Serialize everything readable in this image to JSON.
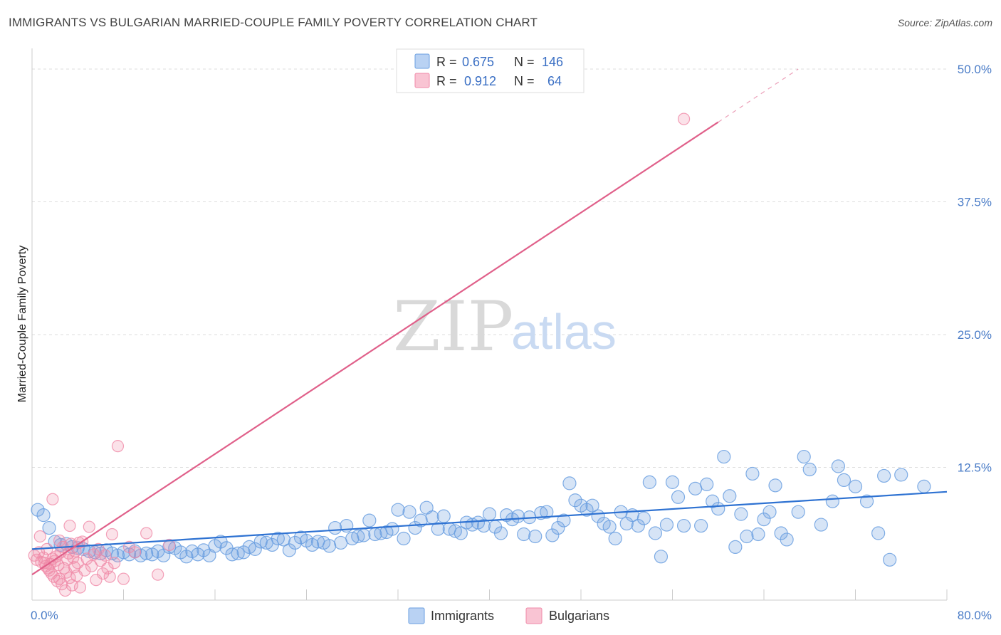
{
  "header": {
    "title": "IMMIGRANTS VS BULGARIAN MARRIED-COUPLE FAMILY POVERTY CORRELATION CHART",
    "source": "Source: ZipAtlas.com"
  },
  "watermark": {
    "zip": "ZIP",
    "atlas": "atlas"
  },
  "legend": {
    "rows": [
      {
        "r_label": "R =",
        "r_value": "0.675",
        "n_label": "N =",
        "n_value": "146",
        "color": "#a9c8f0"
      },
      {
        "r_label": "R =",
        "r_value": "0.912",
        "n_label": "N =",
        "n_value": "64",
        "color": "#f7b6c8"
      }
    ]
  },
  "bottom_legend": {
    "immigrants": "Immigrants",
    "bulgarians": "Bulgarians"
  },
  "chart_data": {
    "type": "scatter",
    "title": "IMMIGRANTS VS BULGARIAN MARRIED-COUPLE FAMILY POVERTY CORRELATION CHART",
    "xlabel": "",
    "ylabel": "Married-Couple Family Poverty",
    "xlim": [
      0,
      80
    ],
    "ylim": [
      0,
      50
    ],
    "x_tick_labels": [
      "0.0%",
      "80.0%"
    ],
    "y_ticks": [
      12.5,
      25,
      37.5,
      50
    ],
    "y_tick_labels": [
      "12.5%",
      "25.0%",
      "37.5%",
      "50.0%"
    ],
    "grid": true,
    "legend_position": "top-center",
    "colors": {
      "immigrants": "#6a9fe0",
      "immigrants_line": "#2e72d2",
      "bulgarians": "#f08aa8",
      "bulgarians_line": "#e0608a"
    },
    "series": [
      {
        "name": "Immigrants",
        "R": 0.675,
        "N": 146,
        "trend": [
          [
            0,
            4.8
          ],
          [
            80,
            10.2
          ]
        ],
        "points": [
          [
            0.5,
            8.5
          ],
          [
            1,
            8
          ],
          [
            1.5,
            6.8
          ],
          [
            2,
            5.5
          ],
          [
            2.5,
            5.2
          ],
          [
            3,
            5.3
          ],
          [
            3.5,
            5
          ],
          [
            4,
            4.9
          ],
          [
            4.5,
            4.8
          ],
          [
            5,
            4.6
          ],
          [
            5.5,
            4.5
          ],
          [
            6,
            4.4
          ],
          [
            6.5,
            4.7
          ],
          [
            7,
            4.4
          ],
          [
            7.5,
            4.2
          ],
          [
            8,
            4.5
          ],
          [
            8.5,
            4.3
          ],
          [
            9,
            4.6
          ],
          [
            9.5,
            4.2
          ],
          [
            10,
            4.4
          ],
          [
            10.5,
            4.3
          ],
          [
            11,
            4.6
          ],
          [
            11.5,
            4.2
          ],
          [
            12,
            5
          ],
          [
            12.5,
            4.9
          ],
          [
            13,
            4.5
          ],
          [
            13.5,
            4.1
          ],
          [
            14,
            4.6
          ],
          [
            14.5,
            4.3
          ],
          [
            15,
            4.7
          ],
          [
            15.5,
            4.2
          ],
          [
            16,
            5.1
          ],
          [
            16.5,
            5.5
          ],
          [
            17,
            4.9
          ],
          [
            17.5,
            4.3
          ],
          [
            18,
            4.4
          ],
          [
            18.5,
            4.5
          ],
          [
            19,
            5
          ],
          [
            19.5,
            4.8
          ],
          [
            20,
            5.5
          ],
          [
            20.5,
            5.4
          ],
          [
            21,
            5.2
          ],
          [
            21.5,
            5.8
          ],
          [
            22,
            5.7
          ],
          [
            22.5,
            4.7
          ],
          [
            23,
            5.4
          ],
          [
            23.5,
            5.9
          ],
          [
            24,
            5.6
          ],
          [
            24.5,
            5.2
          ],
          [
            25,
            5.5
          ],
          [
            25.5,
            5.4
          ],
          [
            26,
            5.1
          ],
          [
            26.5,
            6.8
          ],
          [
            27,
            5.4
          ],
          [
            27.5,
            7
          ],
          [
            28,
            5.8
          ],
          [
            28.5,
            6
          ],
          [
            29,
            6.1
          ],
          [
            29.5,
            7.5
          ],
          [
            30,
            6.2
          ],
          [
            30.5,
            6.3
          ],
          [
            31,
            6.4
          ],
          [
            31.5,
            6.7
          ],
          [
            32,
            8.5
          ],
          [
            32.5,
            5.8
          ],
          [
            33,
            8.3
          ],
          [
            33.5,
            6.8
          ],
          [
            34,
            7.5
          ],
          [
            34.5,
            8.7
          ],
          [
            35,
            7.8
          ],
          [
            35.5,
            6.7
          ],
          [
            36,
            7.9
          ],
          [
            36.5,
            6.7
          ],
          [
            37,
            6.5
          ],
          [
            37.5,
            6.3
          ],
          [
            38,
            7.3
          ],
          [
            38.5,
            7.1
          ],
          [
            39,
            7.3
          ],
          [
            39.5,
            7
          ],
          [
            40,
            8.1
          ],
          [
            40.5,
            6.9
          ],
          [
            41,
            6.3
          ],
          [
            41.5,
            8
          ],
          [
            42,
            7.6
          ],
          [
            42.5,
            7.9
          ],
          [
            43,
            6.2
          ],
          [
            43.5,
            7.8
          ],
          [
            44,
            6
          ],
          [
            44.5,
            8.2
          ],
          [
            45,
            8.3
          ],
          [
            45.5,
            6.1
          ],
          [
            46,
            6.8
          ],
          [
            46.5,
            7.5
          ],
          [
            47,
            11
          ],
          [
            47.5,
            9.4
          ],
          [
            48,
            8.9
          ],
          [
            48.5,
            8.5
          ],
          [
            49,
            8.9
          ],
          [
            49.5,
            7.9
          ],
          [
            50,
            7.2
          ],
          [
            50.5,
            6.9
          ],
          [
            51,
            5.8
          ],
          [
            51.5,
            8.3
          ],
          [
            52,
            7.2
          ],
          [
            52.5,
            8
          ],
          [
            53,
            7
          ],
          [
            53.5,
            7.7
          ],
          [
            54,
            11.1
          ],
          [
            54.5,
            6.3
          ],
          [
            55,
            4.1
          ],
          [
            55.5,
            7.1
          ],
          [
            56,
            11.1
          ],
          [
            56.5,
            9.7
          ],
          [
            57,
            7
          ],
          [
            58,
            10.5
          ],
          [
            58.5,
            7
          ],
          [
            59,
            10.9
          ],
          [
            59.5,
            9.3
          ],
          [
            60,
            8.6
          ],
          [
            60.5,
            13.5
          ],
          [
            61,
            9.8
          ],
          [
            61.5,
            5
          ],
          [
            62,
            8.1
          ],
          [
            62.5,
            6
          ],
          [
            63,
            11.9
          ],
          [
            63.5,
            6.2
          ],
          [
            64,
            7.6
          ],
          [
            64.5,
            8.3
          ],
          [
            65,
            10.8
          ],
          [
            65.5,
            6.3
          ],
          [
            66,
            5.7
          ],
          [
            67,
            8.3
          ],
          [
            67.5,
            13.5
          ],
          [
            68,
            12.3
          ],
          [
            69,
            7.1
          ],
          [
            70,
            9.3
          ],
          [
            70.5,
            12.6
          ],
          [
            71,
            11.3
          ],
          [
            72,
            10.7
          ],
          [
            73,
            9.3
          ],
          [
            74,
            6.3
          ],
          [
            74.5,
            11.7
          ],
          [
            75,
            3.8
          ],
          [
            76,
            11.8
          ],
          [
            78,
            10.7
          ]
        ]
      },
      {
        "name": "Bulgarians",
        "R": 0.912,
        "N": 64,
        "trend": [
          [
            0,
            2.4
          ],
          [
            60,
            45
          ],
          [
            67,
            50
          ]
        ],
        "points": [
          [
            0.2,
            4.2
          ],
          [
            0.4,
            3.8
          ],
          [
            0.6,
            4.5
          ],
          [
            0.8,
            3.6
          ],
          [
            1,
            4
          ],
          [
            1.1,
            3.5
          ],
          [
            1.2,
            3.2
          ],
          [
            1.3,
            4.8
          ],
          [
            1.4,
            3
          ],
          [
            1.5,
            2.8
          ],
          [
            1.6,
            3.4
          ],
          [
            1.7,
            2.5
          ],
          [
            1.8,
            3.9
          ],
          [
            1.9,
            2.2
          ],
          [
            2,
            3.7
          ],
          [
            2.1,
            4.1
          ],
          [
            2.2,
            1.8
          ],
          [
            2.3,
            3.3
          ],
          [
            2.4,
            2
          ],
          [
            2.5,
            4.5
          ],
          [
            2.6,
            1.5
          ],
          [
            2.7,
            5
          ],
          [
            2.8,
            3
          ],
          [
            2.9,
            0.9
          ],
          [
            3,
            2.6
          ],
          [
            3.1,
            3.8
          ],
          [
            3.2,
            4.4
          ],
          [
            3.3,
            2.1
          ],
          [
            3.4,
            5.3
          ],
          [
            3.5,
            1.4
          ],
          [
            3.6,
            4
          ],
          [
            3.7,
            3.1
          ],
          [
            3.8,
            4.6
          ],
          [
            3.9,
            2.3
          ],
          [
            4,
            3.5
          ],
          [
            4.2,
            1.2
          ],
          [
            4.4,
            5.5
          ],
          [
            4.6,
            2.8
          ],
          [
            4.8,
            3.9
          ],
          [
            5,
            6.9
          ],
          [
            5.2,
            3.2
          ],
          [
            5.4,
            4.3
          ],
          [
            5.6,
            1.9
          ],
          [
            5.8,
            4.8
          ],
          [
            6,
            3.7
          ],
          [
            6.2,
            2.5
          ],
          [
            6.4,
            4.2
          ],
          [
            6.6,
            3
          ],
          [
            6.8,
            2.2
          ],
          [
            7,
            6.2
          ],
          [
            7.2,
            3.5
          ],
          [
            7.5,
            14.5
          ],
          [
            8,
            2
          ],
          [
            8.5,
            5
          ],
          [
            9,
            4.5
          ],
          [
            1.8,
            9.5
          ],
          [
            2.4,
            5.6
          ],
          [
            3.3,
            7
          ],
          [
            4.1,
            5.4
          ],
          [
            10,
            6.3
          ],
          [
            11,
            2.4
          ],
          [
            12,
            5.2
          ],
          [
            57,
            45.3
          ],
          [
            0.7,
            6
          ]
        ]
      }
    ]
  }
}
